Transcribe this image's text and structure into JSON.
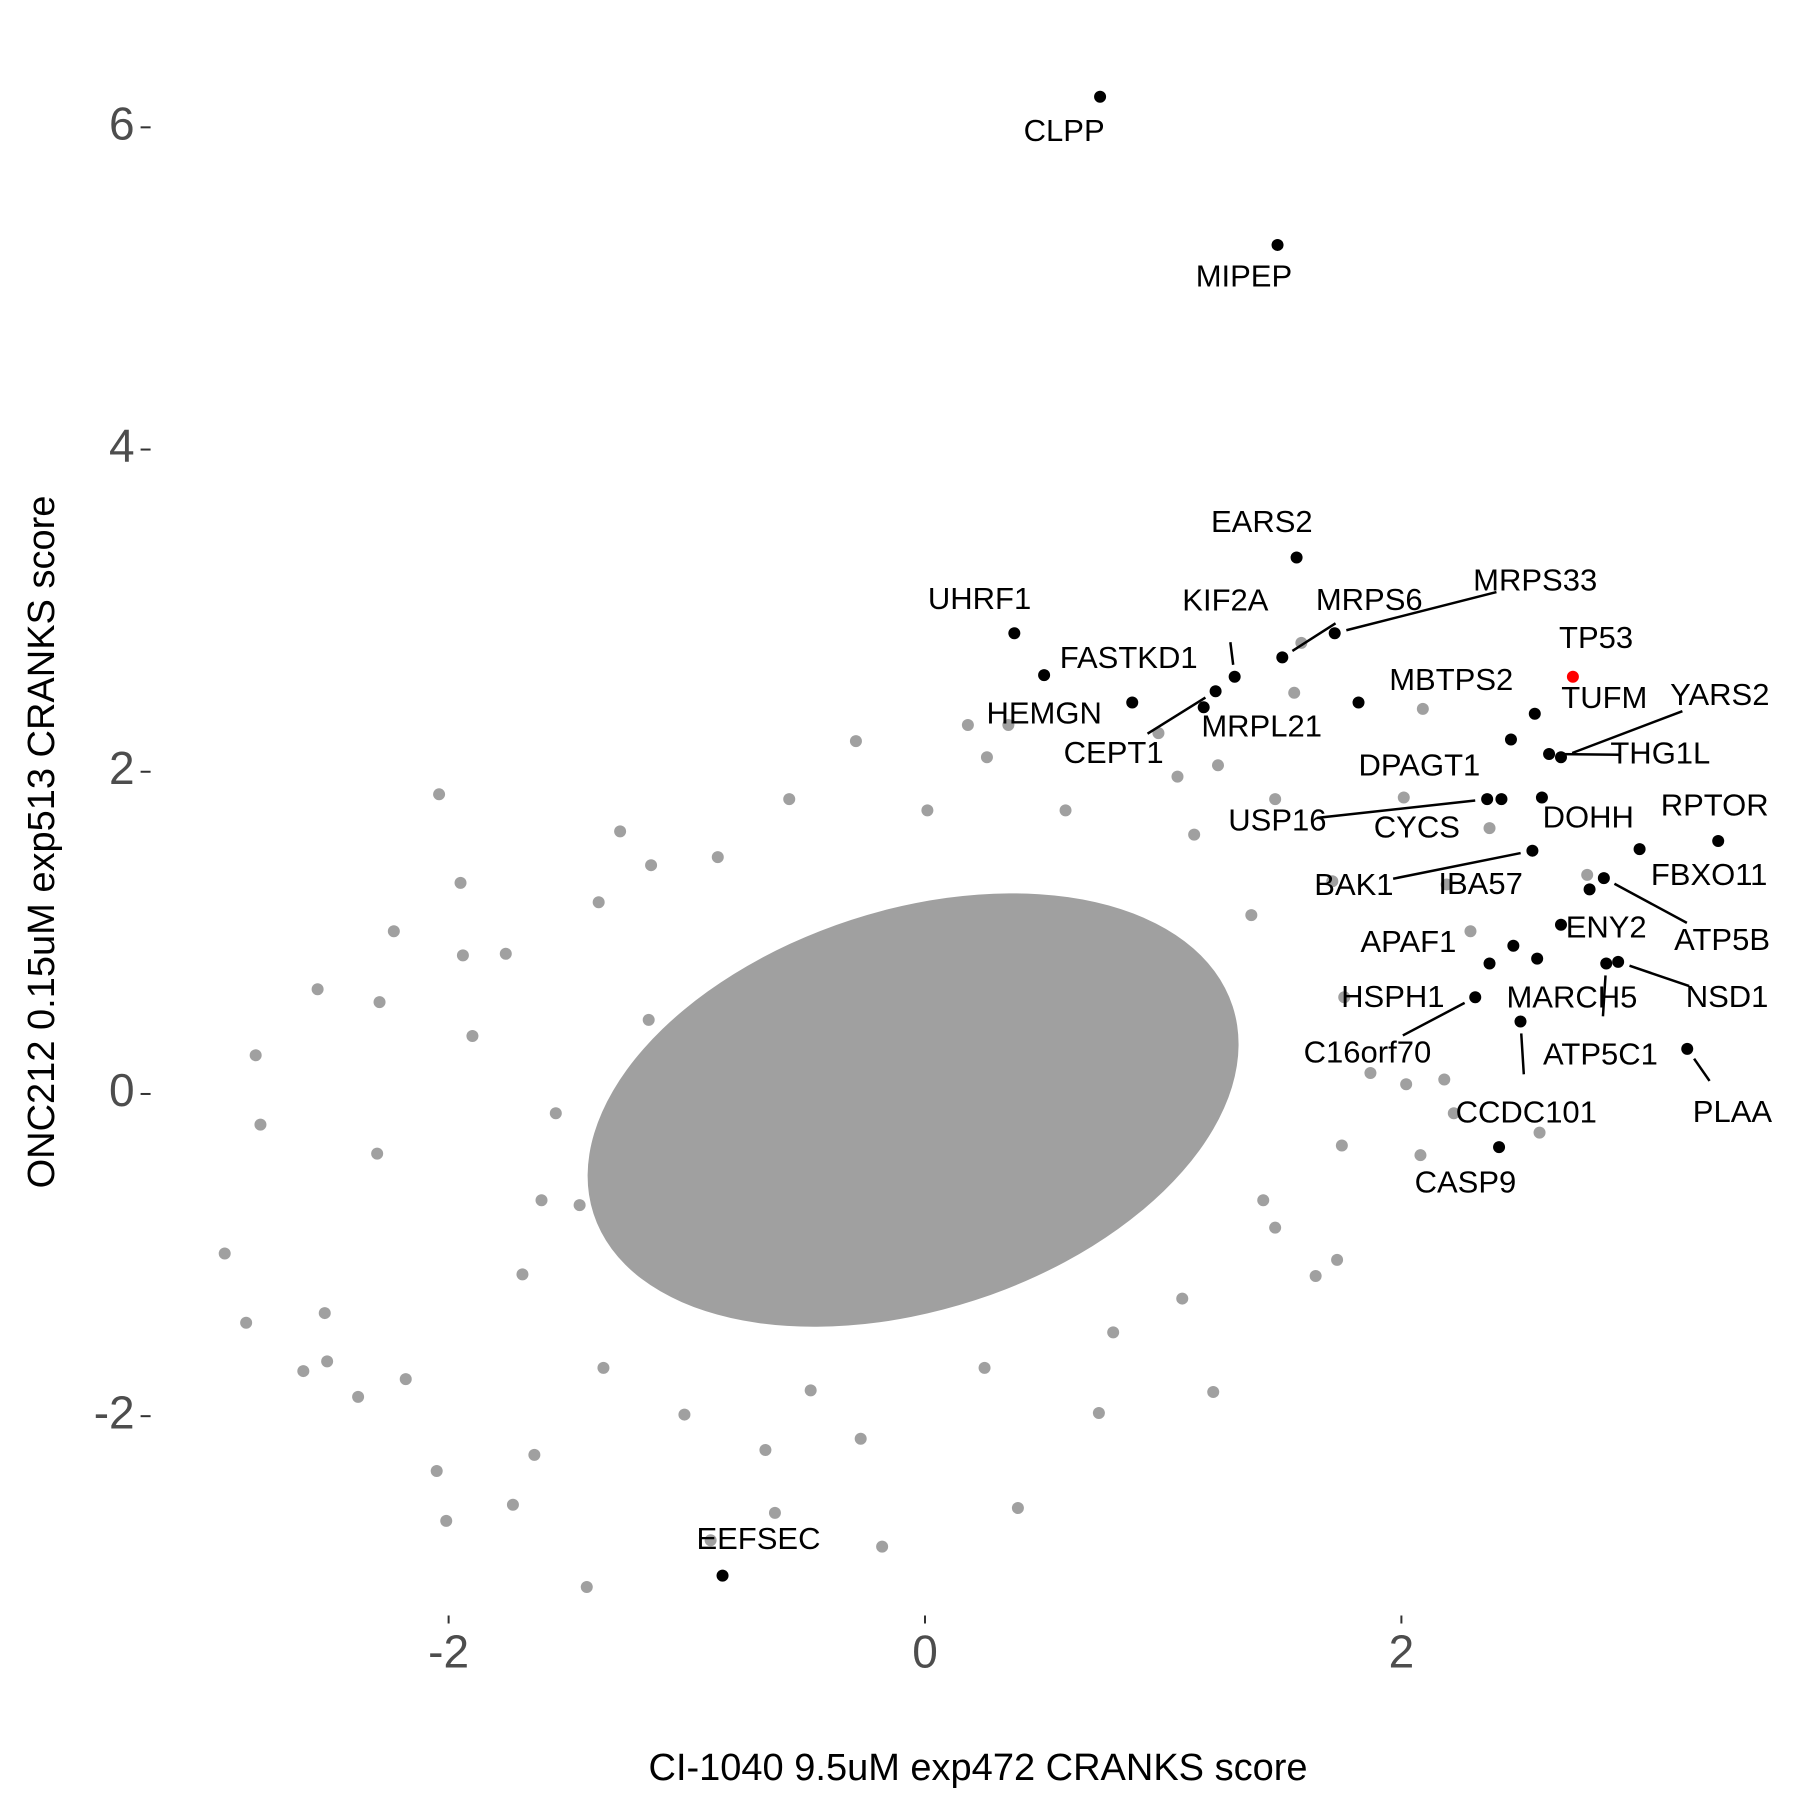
{
  "chart_data": {
    "type": "scatter",
    "xlabel": "CI-1040 9.5uM exp472 CRANKS score",
    "ylabel": "ONC212 0.15uM exp513 CRANKS score",
    "xlim": [
      -3.1,
      3.55
    ],
    "ylim": [
      -3.2,
      6.3
    ],
    "xticks": [
      -2,
      0,
      2
    ],
    "yticks": [
      -2,
      0,
      2,
      4,
      6
    ],
    "grid": false,
    "series": [
      {
        "color": "#a0a0a0",
        "x": [
          -2.94,
          -2.85,
          -2.81,
          -2.79,
          -2.61,
          -2.55,
          -2.52,
          -2.51,
          -2.38,
          -2.29,
          -2.3,
          -2.23,
          -2.18,
          -2.04,
          -2.05,
          -2.01,
          -1.95,
          -1.94,
          -1.9,
          -1.76,
          -1.73,
          -1.64,
          -1.61,
          -1.42,
          -1.37,
          -1.28,
          -1.15,
          -0.9,
          -0.67,
          -0.63,
          -0.29,
          -0.18,
          -0.27,
          0.18,
          0.26,
          0.35,
          0.39,
          0.73,
          0.98,
          1.21,
          1.42,
          1.55,
          1.58,
          1.64,
          1.73,
          1.75,
          1.87,
          2.02,
          2.09,
          2.08,
          2.18,
          2.22,
          2.37,
          2.58,
          2.01,
          2.19,
          2.29,
          1.37,
          1.76,
          1.06,
          -0.57,
          -0.87,
          -1.55,
          -1.69,
          -1.35,
          -1.01,
          -0.48,
          0.25,
          0.79,
          1.08,
          1.47,
          1.71,
          1.47,
          1.13,
          0.59,
          0.01,
          -1.16,
          -1.45,
          1.23,
          2.78
        ],
        "values": [
          -0.99,
          -1.42,
          0.24,
          -0.19,
          -1.72,
          0.65,
          -1.36,
          -1.66,
          -1.88,
          0.57,
          -0.37,
          1.01,
          -1.77,
          1.86,
          -2.34,
          -2.65,
          1.31,
          0.86,
          0.36,
          0.87,
          -2.55,
          -2.24,
          -0.66,
          -3.06,
          1.19,
          1.63,
          1.42,
          -2.77,
          -2.21,
          -2.6,
          2.19,
          -2.81,
          -2.14,
          2.29,
          2.09,
          2.29,
          -2.57,
          -1.98,
          2.24,
          -1.85,
          -0.66,
          2.49,
          2.8,
          -1.13,
          -1.03,
          -0.32,
          0.13,
          0.06,
          2.39,
          -0.38,
          0.09,
          -0.12,
          1.65,
          -0.24,
          1.84,
          1.3,
          1.01,
          1.11,
          0.6,
          1.97,
          1.83,
          1.47,
          -0.12,
          -1.12,
          -1.7,
          -1.99,
          -1.84,
          -1.7,
          -1.48,
          -1.27,
          -0.83,
          1.32,
          1.83,
          1.61,
          1.76,
          1.76,
          0.46,
          -0.69,
          2.04,
          1.36
        ]
      },
      {
        "color": "#000000",
        "labels": [
          "CLPP",
          "MIPEP",
          "EARS2",
          "UHRF1",
          "MRPS33",
          "MRPS6",
          "KIF2A",
          "FASTKD1",
          "HEMGN",
          "MRPL21",
          "CEPT1",
          "MBTPS2",
          "TUFM",
          "YARS2",
          "THG1L",
          "DOHH",
          "DPAGT1",
          "USP16",
          "CYCS",
          "BAK1",
          "RPTOR",
          "FBXO11",
          "IBA57",
          "ATP5B",
          "ENY2",
          "APAF1",
          "NSD1",
          "MARCH5",
          "ATP5C1",
          "HSPH1",
          "C16orf70",
          "CCDC101",
          "PLAA",
          "CASP9",
          "EEFSEC"
        ],
        "x": [
          0.735,
          1.48,
          1.56,
          0.375,
          1.72,
          1.5,
          1.3,
          0.5,
          0.87,
          1.17,
          1.22,
          1.82,
          2.56,
          2.67,
          2.62,
          2.59,
          2.46,
          2.36,
          2.42,
          2.55,
          3.33,
          3.0,
          2.79,
          2.85,
          2.67,
          2.37,
          2.91,
          2.57,
          2.86,
          2.47,
          2.31,
          2.5,
          3.2,
          2.41,
          -0.85
        ],
        "values": [
          6.19,
          5.27,
          3.33,
          2.86,
          2.86,
          2.71,
          2.59,
          2.6,
          2.43,
          2.4,
          2.5,
          2.43,
          2.36,
          2.09,
          2.11,
          1.84,
          2.2,
          1.83,
          1.83,
          1.51,
          1.57,
          1.52,
          1.27,
          1.34,
          1.05,
          0.81,
          0.82,
          0.84,
          0.81,
          0.92,
          0.6,
          0.45,
          0.28,
          -0.33,
          -2.99
        ]
      },
      {
        "color": "#ff0000",
        "labels": [
          "TP53"
        ],
        "x": [
          2.72
        ],
        "values": [
          2.59
        ]
      }
    ]
  }
}
